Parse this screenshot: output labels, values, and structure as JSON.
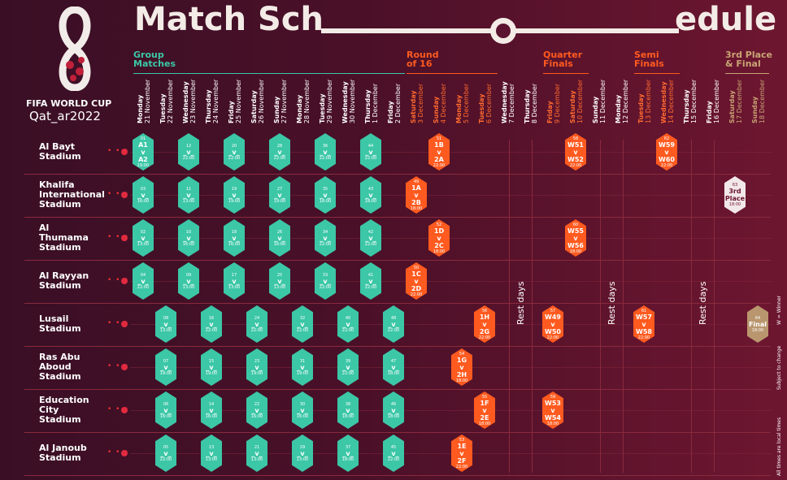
{
  "header": {
    "title_left": "Match Sch",
    "title_right": "edule"
  },
  "logo": {
    "line1": "FIFA WORLD CUP",
    "line2": "Qat_ar2022"
  },
  "stages": [
    {
      "label": "Group\nMatches",
      "color": "#3cc7a7"
    },
    {
      "label": "Round\nof 16",
      "color": "#ff5a1f"
    },
    {
      "label": "Quarter\nFinals",
      "color": "#ff5a1f"
    },
    {
      "label": "Semi\nFinals",
      "color": "#ff5a1f"
    },
    {
      "label": "3rd Place\n& Final",
      "color": "#c9a574"
    }
  ],
  "days": [
    {
      "dow": "Monday",
      "date": "21 November"
    },
    {
      "dow": "Tuesday",
      "date": "22 November"
    },
    {
      "dow": "Wednesday",
      "date": "23 November"
    },
    {
      "dow": "Thursday",
      "date": "24 November"
    },
    {
      "dow": "Friday",
      "date": "25 November"
    },
    {
      "dow": "Saturday",
      "date": "26 November"
    },
    {
      "dow": "Sunday",
      "date": "27 November"
    },
    {
      "dow": "Monday",
      "date": "28 November"
    },
    {
      "dow": "Tuesday",
      "date": "29 November"
    },
    {
      "dow": "Wednesday",
      "date": "30 November"
    },
    {
      "dow": "Thursday",
      "date": "1 December"
    },
    {
      "dow": "Friday",
      "date": "2 December"
    },
    {
      "dow": "Saturday",
      "date": "3 December"
    },
    {
      "dow": "Sunday",
      "date": "4 December"
    },
    {
      "dow": "Monday",
      "date": "5 December"
    },
    {
      "dow": "Tuesday",
      "date": "6 December"
    },
    {
      "dow": "Wednesday",
      "date": "7 December"
    },
    {
      "dow": "Thursday",
      "date": "8 December"
    },
    {
      "dow": "Friday",
      "date": "9 December"
    },
    {
      "dow": "Saturday",
      "date": "10 December"
    },
    {
      "dow": "Sunday",
      "date": "11 December"
    },
    {
      "dow": "Monday",
      "date": "12 December"
    },
    {
      "dow": "Tuesday",
      "date": "13 December"
    },
    {
      "dow": "Wednesday",
      "date": "14 December"
    },
    {
      "dow": "Thursday",
      "date": "15 December"
    },
    {
      "dow": "Friday",
      "date": "16 December"
    },
    {
      "dow": "Saturday",
      "date": "17 December"
    },
    {
      "dow": "Sunday",
      "date": "18 December"
    }
  ],
  "stadiums": [
    "Al Bayt\nStadium",
    "Khalifa\nInternational\nStadium",
    "Al\nThumama\nStadium",
    "Al Rayyan\nStadium",
    "Lusail\nStadium",
    "Ras Abu\nAboud\nStadium",
    "Education\nCity\nStadium",
    "Al Janoub\nStadium"
  ],
  "rest_label": "Rest days",
  "notes": {
    "winner": "W = Winner",
    "subject": "Subject to change",
    "times": "All times are local times"
  },
  "matches": [
    {
      "row": 0,
      "day": 0,
      "type": "g",
      "num": "01",
      "mid": "A1\nv\nA2",
      "time": "19:00"
    },
    {
      "row": 0,
      "day": 2,
      "type": "g",
      "num": "12",
      "mid": "_v_",
      "time": "22:00"
    },
    {
      "row": 0,
      "day": 4,
      "type": "g",
      "num": "20",
      "mid": "_v_",
      "time": "22:00"
    },
    {
      "row": 0,
      "day": 6,
      "type": "g",
      "num": "28",
      "mid": "_v_",
      "time": "22:00"
    },
    {
      "row": 0,
      "day": 8,
      "type": "g",
      "num": "36",
      "mid": "_v_",
      "time": "22:00"
    },
    {
      "row": 0,
      "day": 10,
      "type": "g",
      "num": "44",
      "mid": "_v_",
      "time": "22:00"
    },
    {
      "row": 0,
      "day": 13,
      "type": "k",
      "num": "51",
      "mid": "1B\nv\n2A",
      "time": "22:00"
    },
    {
      "row": 0,
      "day": 19,
      "type": "k",
      "num": "58",
      "mid": "W51\nv\nW52",
      "time": "22:00"
    },
    {
      "row": 0,
      "day": 23,
      "type": "k",
      "num": "62",
      "mid": "W59\nv\nW60",
      "time": "22:00"
    },
    {
      "row": 1,
      "day": 0,
      "type": "g",
      "num": "03",
      "mid": "_v_",
      "time": "16:00"
    },
    {
      "row": 1,
      "day": 2,
      "type": "g",
      "num": "11",
      "mid": "_v_",
      "time": "13:00"
    },
    {
      "row": 1,
      "day": 4,
      "type": "g",
      "num": "19",
      "mid": "_v_",
      "time": "19:00"
    },
    {
      "row": 1,
      "day": 6,
      "type": "g",
      "num": "27",
      "mid": "_v_",
      "time": "19:00"
    },
    {
      "row": 1,
      "day": 8,
      "type": "g",
      "num": "35",
      "mid": "_v_",
      "time": "18:00"
    },
    {
      "row": 1,
      "day": 10,
      "type": "g",
      "num": "43",
      "mid": "_v_",
      "time": "18:00"
    },
    {
      "row": 1,
      "day": 12,
      "type": "k",
      "num": "49",
      "mid": "1A\nv\n2B",
      "time": "18:00"
    },
    {
      "row": 1,
      "day": 26,
      "type": "p",
      "num": "63",
      "mid": "3rd\nPlace",
      "time": "18:00"
    },
    {
      "row": 2,
      "day": 0,
      "type": "g",
      "num": "02",
      "mid": "_v_",
      "time": "13:00"
    },
    {
      "row": 2,
      "day": 2,
      "type": "g",
      "num": "10",
      "mid": "_v_",
      "time": "16:00"
    },
    {
      "row": 2,
      "day": 4,
      "type": "g",
      "num": "18",
      "mid": "_v_",
      "time": "16:00"
    },
    {
      "row": 2,
      "day": 6,
      "type": "g",
      "num": "26",
      "mid": "_v_",
      "time": "16:00"
    },
    {
      "row": 2,
      "day": 8,
      "type": "g",
      "num": "34",
      "mid": "_v_",
      "time": "22:00"
    },
    {
      "row": 2,
      "day": 10,
      "type": "g",
      "num": "42",
      "mid": "_v_",
      "time": "22:00"
    },
    {
      "row": 2,
      "day": 13,
      "type": "k",
      "num": "52",
      "mid": "1D\nv\n2C",
      "time": "18:00"
    },
    {
      "row": 2,
      "day": 19,
      "type": "k",
      "num": "60",
      "mid": "W55\nv\nW56",
      "time": "18:00"
    },
    {
      "row": 3,
      "day": 0,
      "type": "g",
      "num": "04",
      "mid": "_v_",
      "time": "22:00"
    },
    {
      "row": 3,
      "day": 2,
      "type": "g",
      "num": "09",
      "mid": "_v_",
      "time": "13:00"
    },
    {
      "row": 3,
      "day": 4,
      "type": "g",
      "num": "17",
      "mid": "_v_",
      "time": "13:00"
    },
    {
      "row": 3,
      "day": 6,
      "type": "g",
      "num": "25",
      "mid": "_v_",
      "time": "13:00"
    },
    {
      "row": 3,
      "day": 8,
      "type": "g",
      "num": "33",
      "mid": "_v_",
      "time": "22:00"
    },
    {
      "row": 3,
      "day": 10,
      "type": "g",
      "num": "41",
      "mid": "_v_",
      "time": "22:00"
    },
    {
      "row": 3,
      "day": 12,
      "type": "k",
      "num": "50",
      "mid": "1C\nv\n2D",
      "time": "22:00"
    },
    {
      "row": 4,
      "day": 1,
      "type": "g",
      "num": "08",
      "mid": "_v_",
      "time": "13:00"
    },
    {
      "row": 4,
      "day": 3,
      "type": "g",
      "num": "16",
      "mid": "_v_",
      "time": "22:00"
    },
    {
      "row": 4,
      "day": 5,
      "type": "g",
      "num": "24",
      "mid": "_v_",
      "time": "22:00"
    },
    {
      "row": 4,
      "day": 7,
      "type": "g",
      "num": "32",
      "mid": "_v_",
      "time": "22:00"
    },
    {
      "row": 4,
      "day": 9,
      "type": "g",
      "num": "40",
      "mid": "_v_",
      "time": "22:00"
    },
    {
      "row": 4,
      "day": 11,
      "type": "g",
      "num": "48",
      "mid": "_v_",
      "time": "22:00"
    },
    {
      "row": 4,
      "day": 15,
      "type": "k",
      "num": "56",
      "mid": "1H\nv\n2G",
      "time": "22:00"
    },
    {
      "row": 4,
      "day": 18,
      "type": "k",
      "num": "57",
      "mid": "W49\nv\nW50",
      "time": "22:00"
    },
    {
      "row": 4,
      "day": 22,
      "type": "k",
      "num": "61",
      "mid": "W57\nv\nW58",
      "time": "22:00"
    },
    {
      "row": 4,
      "day": 27,
      "type": "f",
      "num": "64",
      "mid": "Final",
      "time": "18:00"
    },
    {
      "row": 5,
      "day": 1,
      "type": "g",
      "num": "07",
      "mid": "_v_",
      "time": "19:00"
    },
    {
      "row": 5,
      "day": 3,
      "type": "g",
      "num": "15",
      "mid": "_v_",
      "time": "19:00"
    },
    {
      "row": 5,
      "day": 5,
      "type": "g",
      "num": "23",
      "mid": "_v_",
      "time": "19:00"
    },
    {
      "row": 5,
      "day": 7,
      "type": "g",
      "num": "31",
      "mid": "_v_",
      "time": "19:00"
    },
    {
      "row": 5,
      "day": 9,
      "type": "g",
      "num": "39",
      "mid": "_v_",
      "time": "22:00"
    },
    {
      "row": 5,
      "day": 11,
      "type": "g",
      "num": "47",
      "mid": "_v_",
      "time": "18:00"
    },
    {
      "row": 5,
      "day": 14,
      "type": "k",
      "num": "54",
      "mid": "1G\nv\n2H",
      "time": "18:00"
    },
    {
      "row": 6,
      "day": 1,
      "type": "g",
      "num": "06",
      "mid": "_v_",
      "time": "16:00"
    },
    {
      "row": 6,
      "day": 3,
      "type": "g",
      "num": "14",
      "mid": "_v_",
      "time": "16:00"
    },
    {
      "row": 6,
      "day": 5,
      "type": "g",
      "num": "22",
      "mid": "_v_",
      "time": "16:00"
    },
    {
      "row": 6,
      "day": 7,
      "type": "g",
      "num": "30",
      "mid": "_v_",
      "time": "16:00"
    },
    {
      "row": 6,
      "day": 9,
      "type": "g",
      "num": "38",
      "mid": "_v_",
      "time": "18:00"
    },
    {
      "row": 6,
      "day": 11,
      "type": "g",
      "num": "46",
      "mid": "_v_",
      "time": "18:00"
    },
    {
      "row": 6,
      "day": 15,
      "type": "k",
      "num": "55",
      "mid": "1F\nv\n2E",
      "time": "18:00"
    },
    {
      "row": 6,
      "day": 18,
      "type": "k",
      "num": "59",
      "mid": "W53\nv\nW54",
      "time": "18:00"
    },
    {
      "row": 7,
      "day": 1,
      "type": "g",
      "num": "05",
      "mid": "_v_",
      "time": "22:00"
    },
    {
      "row": 7,
      "day": 3,
      "type": "g",
      "num": "13",
      "mid": "_v_",
      "time": "13:00"
    },
    {
      "row": 7,
      "day": 5,
      "type": "g",
      "num": "21",
      "mid": "_v_",
      "time": "13:00"
    },
    {
      "row": 7,
      "day": 7,
      "type": "g",
      "num": "29",
      "mid": "_v_",
      "time": "13:00"
    },
    {
      "row": 7,
      "day": 9,
      "type": "g",
      "num": "37",
      "mid": "_v_",
      "time": "18:00"
    },
    {
      "row": 7,
      "day": 11,
      "type": "g",
      "num": "45",
      "mid": "_v_",
      "time": "22:00"
    },
    {
      "row": 7,
      "day": 14,
      "type": "k",
      "num": "53",
      "mid": "1E\nv\n2F",
      "time": "22:00"
    }
  ]
}
